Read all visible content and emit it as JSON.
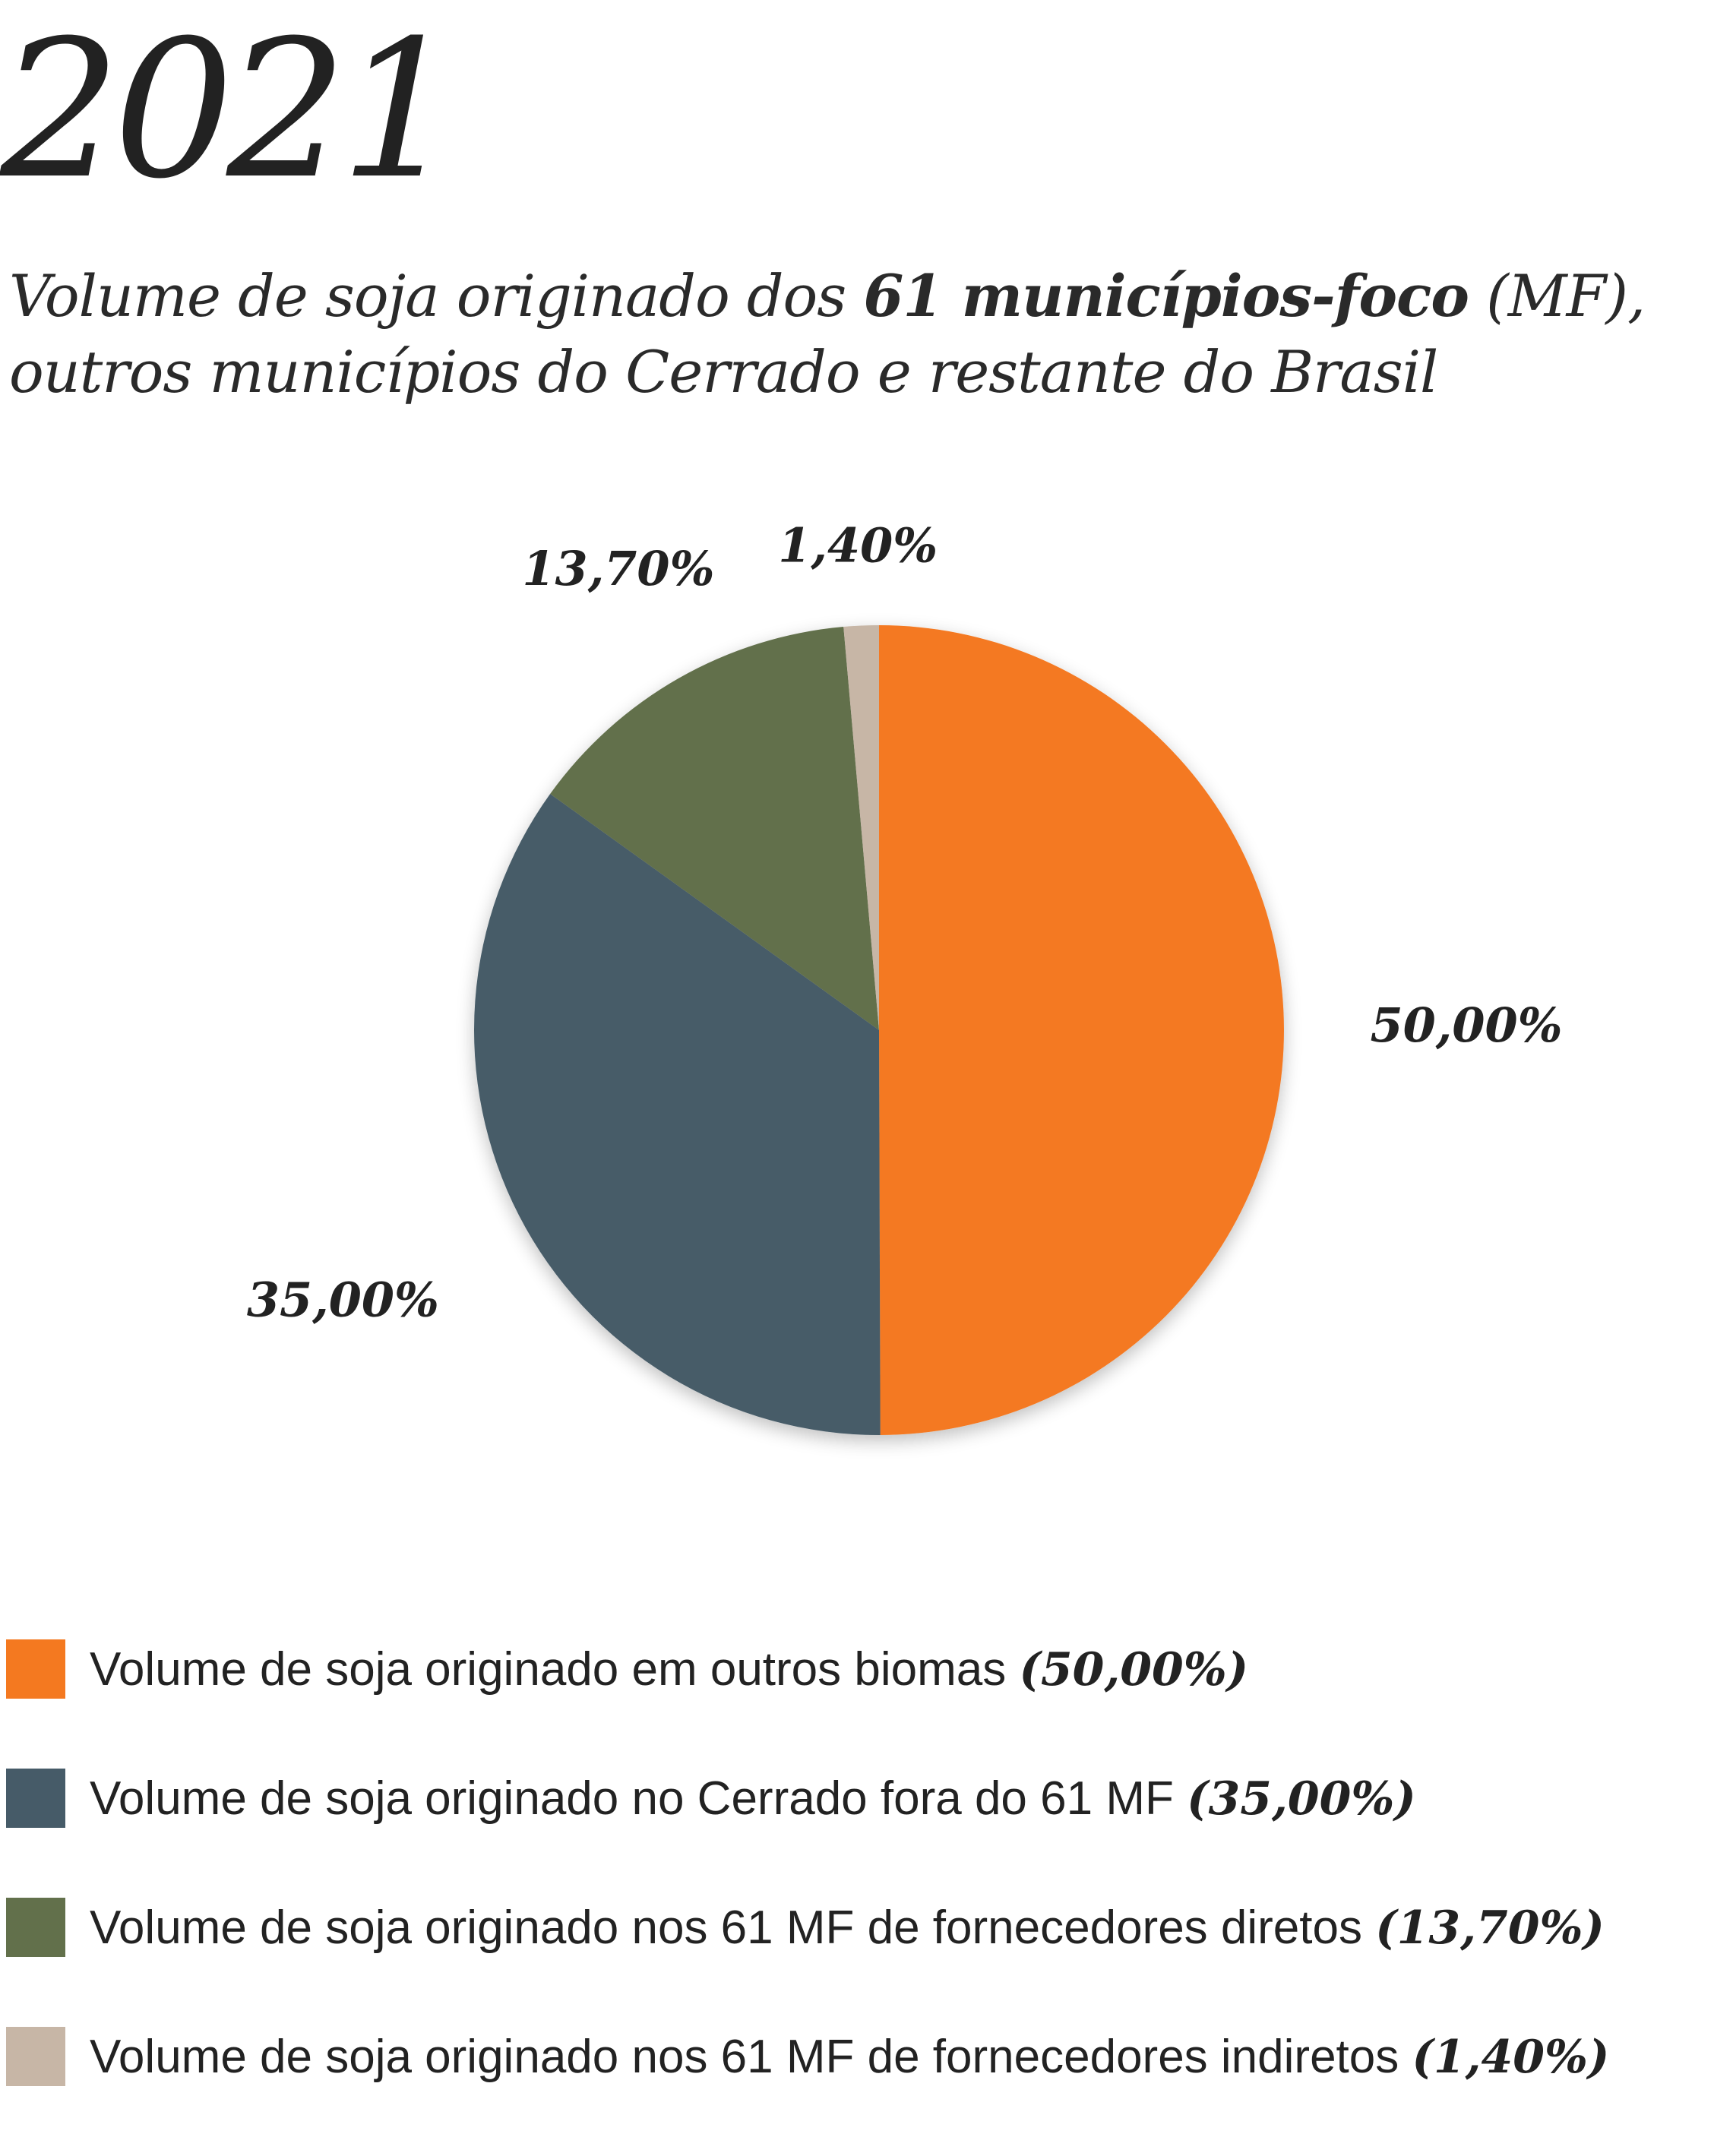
{
  "header": {
    "year": "2021",
    "subtitle_part1": "Volume de soja originado dos ",
    "subtitle_bold": "61 municípios-foco",
    "subtitle_part2": " (MF),",
    "subtitle_line2": "outros municípios do Cerrado e restante do Brasil"
  },
  "chart_data": {
    "type": "pie",
    "title": "Volume de soja originado dos 61 municípios-foco (MF), outros municípios do Cerrado e restante do Brasil",
    "slices": [
      {
        "label": "Volume de soja originado em outros biomas",
        "value": 50.0,
        "display": "50,00%",
        "legend_pct": "(50,00%)",
        "color": "#F47920"
      },
      {
        "label": "Volume de soja originado no Cerrado fora do 61 MF",
        "value": 35.0,
        "display": "35,00%",
        "legend_pct": "(35,00%)",
        "color": "#465B68"
      },
      {
        "label": "Volume de soja originado nos 61 MF de fornecedores diretos",
        "value": 13.7,
        "display": "13,70%",
        "legend_pct": "(13,70%)",
        "color": "#62704B"
      },
      {
        "label": "Volume de soja originado nos 61 MF de fornecedores indiretos",
        "value": 1.4,
        "display": "1,40%",
        "legend_pct": "(1,40%)",
        "color": "#C7B6A6"
      }
    ],
    "legend_position": "bottom"
  }
}
